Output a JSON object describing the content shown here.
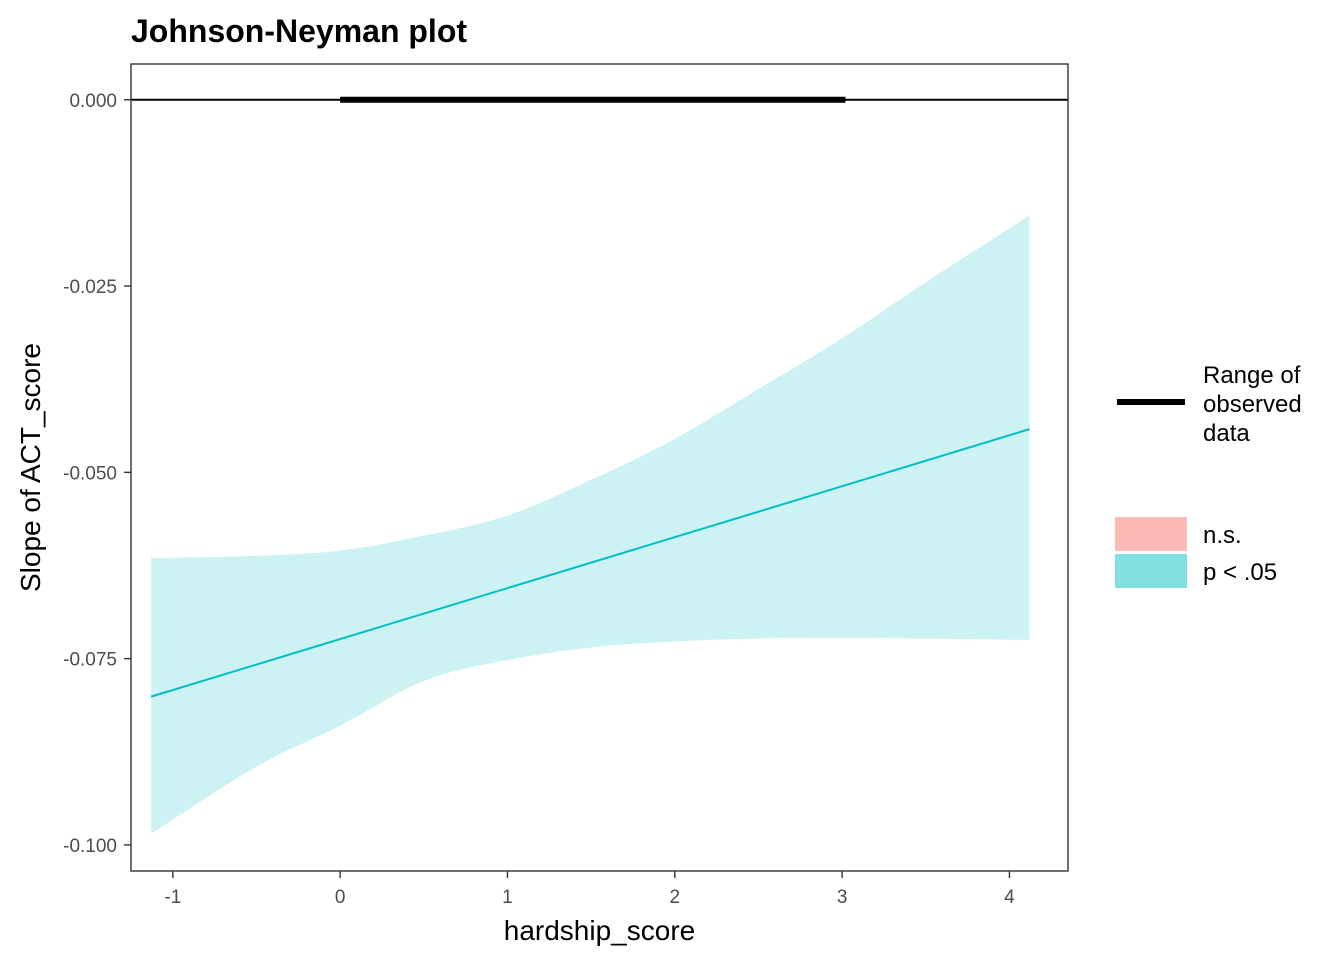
{
  "chart_data": {
    "type": "line",
    "title": "Johnson-Neyman plot",
    "xlabel": "hardship_score",
    "ylabel": "Slope of ACT_score",
    "xlim": [
      -1.25,
      4.35
    ],
    "ylim": [
      -0.1035,
      0.0048
    ],
    "x_ticks": [
      -1,
      0,
      1,
      2,
      3,
      4
    ],
    "x_tick_labels": [
      "-1",
      "0",
      "1",
      "2",
      "3",
      "4"
    ],
    "y_ticks": [
      0.0,
      -0.025,
      -0.05,
      -0.075,
      -0.1
    ],
    "y_tick_labels": [
      "0.000",
      "-0.025",
      "-0.050",
      "-0.075",
      "-0.100"
    ],
    "grid": false,
    "reference_line": {
      "y": 0
    },
    "observed_range": [
      0.0,
      3.02
    ],
    "slope_line": {
      "x": [
        -1.13,
        4.12
      ],
      "y": [
        -0.0801,
        -0.0442
      ],
      "color": "#00BFC4"
    },
    "confidence_band": {
      "color": "#00BFC4",
      "x": [
        -1.13,
        -0.5,
        0,
        0.5,
        1.0,
        1.5,
        2.0,
        2.5,
        3.0,
        3.5,
        4.12
      ],
      "lower": [
        -0.0985,
        -0.0895,
        -0.084,
        -0.078,
        -0.0752,
        -0.0735,
        -0.0727,
        -0.0723,
        -0.0722,
        -0.0723,
        -0.0725
      ],
      "upper": [
        -0.0615,
        -0.0612,
        -0.0605,
        -0.0585,
        -0.0558,
        -0.051,
        -0.0455,
        -0.0388,
        -0.032,
        -0.0245,
        -0.0155
      ]
    },
    "legend": {
      "position": "right",
      "line_label": "Range of\nobserved\ndata",
      "fill_items": [
        {
          "label": "n.s.",
          "color": "#F8766D"
        },
        {
          "label": "p < .05",
          "color": "#00BFC4"
        }
      ]
    }
  }
}
